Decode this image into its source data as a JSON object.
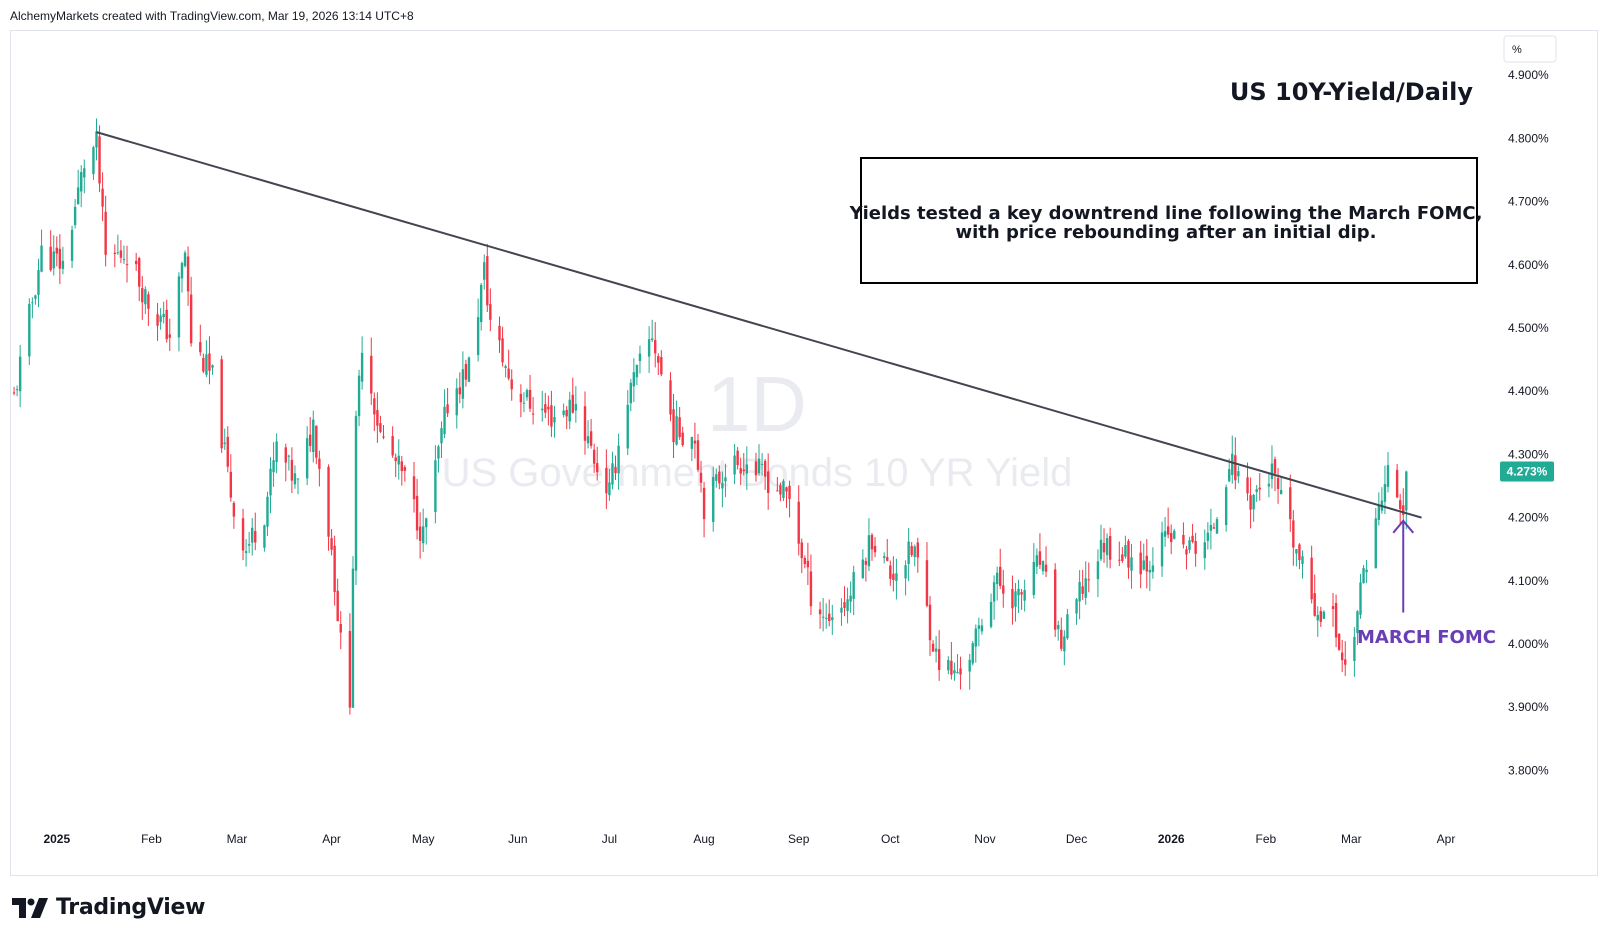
{
  "header": {
    "text": "AlchemyMarkets created with TradingView.com, Mar 19, 2026 13:14 UTC+8"
  },
  "footer": {
    "logo_text": "TradingView"
  },
  "colors": {
    "up": "#22ab94",
    "down": "#f23645",
    "trendline": "#434651",
    "annotation": "#6a3fb5",
    "watermark": "#e9ebf0"
  },
  "chart_data": {
    "type": "candlestick",
    "title": "US 10Y-Yield/Daily",
    "watermark": {
      "interval": "1D",
      "symbol": "US Government Bonds 10 YR Yield"
    },
    "note": {
      "lines": [
        "Yields tested a key downtrend line following the March FOMC,",
        "with price rebounding after an initial dip."
      ]
    },
    "event_label": "MARCH FOMC",
    "y_axis": {
      "unit": "%",
      "ticks": [
        "4.900%",
        "4.800%",
        "4.700%",
        "4.600%",
        "4.500%",
        "4.400%",
        "4.300%",
        "4.200%",
        "4.100%",
        "4.000%",
        "3.900%",
        "3.800%"
      ],
      "ylim": [
        3.72,
        4.97
      ]
    },
    "x_axis": {
      "ticks": [
        {
          "label": "2025",
          "date": "2025-01-01",
          "bold": true
        },
        {
          "label": "Feb",
          "date": "2025-02-01"
        },
        {
          "label": "Mar",
          "date": "2025-03-01"
        },
        {
          "label": "Apr",
          "date": "2025-04-01"
        },
        {
          "label": "May",
          "date": "2025-05-01"
        },
        {
          "label": "Jun",
          "date": "2025-06-01"
        },
        {
          "label": "Jul",
          "date": "2025-07-01"
        },
        {
          "label": "Aug",
          "date": "2025-08-01"
        },
        {
          "label": "Sep",
          "date": "2025-09-01"
        },
        {
          "label": "Oct",
          "date": "2025-10-01"
        },
        {
          "label": "Nov",
          "date": "2025-11-01"
        },
        {
          "label": "Dec",
          "date": "2025-12-01"
        },
        {
          "label": "2026",
          "date": "2026-01-01",
          "bold": true
        },
        {
          "label": "Feb",
          "date": "2026-02-01"
        },
        {
          "label": "Mar",
          "date": "2026-03-01"
        },
        {
          "label": "Apr",
          "date": "2026-04-01"
        }
      ],
      "xlim": [
        "2024-12-17",
        "2026-04-20"
      ]
    },
    "last_value": "4.273%",
    "trendline": {
      "from": {
        "date": "2025-01-14",
        "value": 4.81
      },
      "to": {
        "date": "2026-03-24",
        "value": 4.2
      }
    },
    "series": [
      {
        "name": "close",
        "points": [
          [
            "2024-12-18",
            4.39
          ],
          [
            "2024-12-27",
            4.62
          ],
          [
            "2025-01-03",
            4.6
          ],
          [
            "2025-01-10",
            4.76
          ],
          [
            "2025-01-14",
            4.79
          ],
          [
            "2025-01-17",
            4.61
          ],
          [
            "2025-01-24",
            4.62
          ],
          [
            "2025-01-31",
            4.54
          ],
          [
            "2025-02-07",
            4.49
          ],
          [
            "2025-02-12",
            4.62
          ],
          [
            "2025-02-14",
            4.48
          ],
          [
            "2025-02-21",
            4.42
          ],
          [
            "2025-02-28",
            4.21
          ],
          [
            "2025-03-04",
            4.15
          ],
          [
            "2025-03-10",
            4.21
          ],
          [
            "2025-03-14",
            4.31
          ],
          [
            "2025-03-21",
            4.25
          ],
          [
            "2025-03-26",
            4.35
          ],
          [
            "2025-04-01",
            4.15
          ],
          [
            "2025-04-04",
            4.0
          ],
          [
            "2025-04-07",
            3.92
          ],
          [
            "2025-04-09",
            4.34
          ],
          [
            "2025-04-11",
            4.48
          ],
          [
            "2025-04-17",
            4.33
          ],
          [
            "2025-04-25",
            4.26
          ],
          [
            "2025-05-01",
            4.17
          ],
          [
            "2025-05-09",
            4.38
          ],
          [
            "2025-05-16",
            4.44
          ],
          [
            "2025-05-21",
            4.59
          ],
          [
            "2025-05-23",
            4.51
          ],
          [
            "2025-05-30",
            4.41
          ],
          [
            "2025-06-05",
            4.38
          ],
          [
            "2025-06-12",
            4.36
          ],
          [
            "2025-06-20",
            4.38
          ],
          [
            "2025-06-27",
            4.28
          ],
          [
            "2025-07-01",
            4.24
          ],
          [
            "2025-07-07",
            4.39
          ],
          [
            "2025-07-15",
            4.49
          ],
          [
            "2025-07-22",
            4.34
          ],
          [
            "2025-07-29",
            4.33
          ],
          [
            "2025-08-01",
            4.22
          ],
          [
            "2025-08-08",
            4.28
          ],
          [
            "2025-08-14",
            4.29
          ],
          [
            "2025-08-22",
            4.26
          ],
          [
            "2025-08-29",
            4.23
          ],
          [
            "2025-09-05",
            4.08
          ],
          [
            "2025-09-10",
            4.04
          ],
          [
            "2025-09-17",
            4.07
          ],
          [
            "2025-09-25",
            4.17
          ],
          [
            "2025-10-01",
            4.11
          ],
          [
            "2025-10-09",
            4.15
          ],
          [
            "2025-10-16",
            3.98
          ],
          [
            "2025-10-22",
            3.95
          ],
          [
            "2025-10-28",
            3.99
          ],
          [
            "2025-11-04",
            4.1
          ],
          [
            "2025-11-12",
            4.07
          ],
          [
            "2025-11-19",
            4.13
          ],
          [
            "2025-11-26",
            4.0
          ],
          [
            "2025-12-03",
            4.09
          ],
          [
            "2025-12-10",
            4.16
          ],
          [
            "2025-12-17",
            4.14
          ],
          [
            "2025-12-24",
            4.13
          ],
          [
            "2025-12-31",
            4.17
          ],
          [
            "2026-01-07",
            4.15
          ],
          [
            "2026-01-14",
            4.17
          ],
          [
            "2026-01-20",
            4.29
          ],
          [
            "2026-01-27",
            4.23
          ],
          [
            "2026-02-03",
            4.27
          ],
          [
            "2026-02-10",
            4.16
          ],
          [
            "2026-02-17",
            4.06
          ],
          [
            "2026-02-23",
            4.04
          ],
          [
            "2026-02-27",
            3.96
          ],
          [
            "2026-03-03",
            4.05
          ],
          [
            "2026-03-06",
            4.14
          ],
          [
            "2026-03-10",
            4.21
          ],
          [
            "2026-03-13",
            4.27
          ],
          [
            "2026-03-17",
            4.22
          ],
          [
            "2026-03-18",
            4.2
          ],
          [
            "2026-03-19",
            4.27
          ]
        ]
      }
    ]
  }
}
